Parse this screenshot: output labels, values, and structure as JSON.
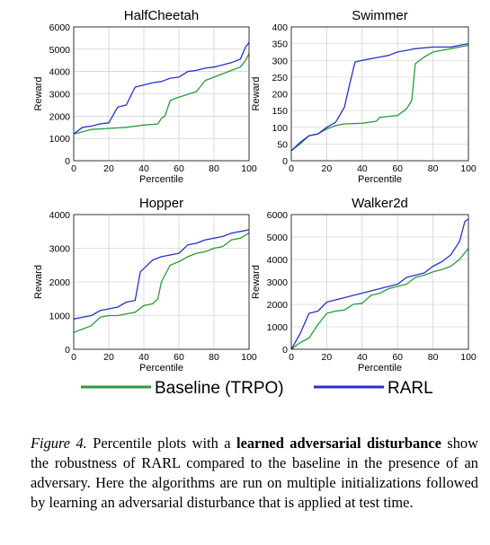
{
  "chart_data": [
    {
      "type": "line",
      "title": "HalfCheetah",
      "xlabel": "Percentile",
      "ylabel": "Reward",
      "xlim": [
        0,
        100
      ],
      "ylim": [
        0,
        6000
      ],
      "xticks": [
        0,
        20,
        40,
        60,
        80,
        100
      ],
      "yticks": [
        0,
        1000,
        2000,
        3000,
        4000,
        5000,
        6000
      ],
      "grid": true,
      "series": [
        {
          "name": "Baseline (TRPO)",
          "color": "#2a9a3a",
          "points": [
            [
              0,
              1200
            ],
            [
              10,
              1400
            ],
            [
              20,
              1450
            ],
            [
              30,
              1500
            ],
            [
              40,
              1600
            ],
            [
              48,
              1650
            ],
            [
              50,
              1900
            ],
            [
              52,
              2000
            ],
            [
              55,
              2700
            ],
            [
              58,
              2800
            ],
            [
              62,
              2900
            ],
            [
              70,
              3100
            ],
            [
              75,
              3600
            ],
            [
              80,
              3750
            ],
            [
              85,
              3900
            ],
            [
              90,
              4050
            ],
            [
              95,
              4200
            ],
            [
              98,
              4500
            ],
            [
              100,
              4800
            ]
          ]
        },
        {
          "name": "RARL",
          "color": "#2633c9",
          "points": [
            [
              0,
              1200
            ],
            [
              5,
              1500
            ],
            [
              10,
              1550
            ],
            [
              15,
              1650
            ],
            [
              20,
              1700
            ],
            [
              25,
              2400
            ],
            [
              30,
              2500
            ],
            [
              35,
              3300
            ],
            [
              40,
              3400
            ],
            [
              45,
              3500
            ],
            [
              50,
              3550
            ],
            [
              55,
              3700
            ],
            [
              60,
              3750
            ],
            [
              65,
              4000
            ],
            [
              70,
              4050
            ],
            [
              75,
              4150
            ],
            [
              80,
              4200
            ],
            [
              85,
              4300
            ],
            [
              90,
              4400
            ],
            [
              95,
              4550
            ],
            [
              98,
              5100
            ],
            [
              100,
              5300
            ]
          ]
        }
      ]
    },
    {
      "type": "line",
      "title": "Swimmer",
      "xlabel": "Percentile",
      "ylabel": "Reward",
      "xlim": [
        0,
        100
      ],
      "ylim": [
        0,
        400
      ],
      "xticks": [
        0,
        20,
        40,
        60,
        80,
        100
      ],
      "yticks": [
        0,
        50,
        100,
        150,
        200,
        250,
        300,
        350,
        400
      ],
      "grid": true,
      "series": [
        {
          "name": "Baseline (TRPO)",
          "color": "#2a9a3a",
          "points": [
            [
              0,
              30
            ],
            [
              5,
              50
            ],
            [
              10,
              75
            ],
            [
              15,
              80
            ],
            [
              20,
              95
            ],
            [
              25,
              105
            ],
            [
              30,
              110
            ],
            [
              40,
              112
            ],
            [
              48,
              118
            ],
            [
              50,
              130
            ],
            [
              60,
              135
            ],
            [
              65,
              155
            ],
            [
              68,
              180
            ],
            [
              70,
              290
            ],
            [
              75,
              310
            ],
            [
              80,
              325
            ],
            [
              85,
              330
            ],
            [
              90,
              335
            ],
            [
              95,
              340
            ],
            [
              100,
              345
            ]
          ]
        },
        {
          "name": "RARL",
          "color": "#2633c9",
          "points": [
            [
              0,
              30
            ],
            [
              5,
              55
            ],
            [
              10,
              75
            ],
            [
              15,
              80
            ],
            [
              20,
              100
            ],
            [
              25,
              115
            ],
            [
              30,
              160
            ],
            [
              33,
              230
            ],
            [
              36,
              295
            ],
            [
              40,
              300
            ],
            [
              45,
              305
            ],
            [
              50,
              310
            ],
            [
              55,
              315
            ],
            [
              60,
              325
            ],
            [
              65,
              330
            ],
            [
              70,
              335
            ],
            [
              80,
              340
            ],
            [
              90,
              340
            ],
            [
              95,
              345
            ],
            [
              100,
              350
            ]
          ]
        }
      ]
    },
    {
      "type": "line",
      "title": "Hopper",
      "xlabel": "Percentile",
      "ylabel": "Reward",
      "xlim": [
        0,
        100
      ],
      "ylim": [
        0,
        4000
      ],
      "xticks": [
        0,
        20,
        40,
        60,
        80,
        100
      ],
      "yticks": [
        0,
        1000,
        2000,
        3000,
        4000
      ],
      "grid": true,
      "series": [
        {
          "name": "Baseline (TRPO)",
          "color": "#2a9a3a",
          "points": [
            [
              0,
              500
            ],
            [
              5,
              600
            ],
            [
              10,
              700
            ],
            [
              15,
              950
            ],
            [
              20,
              1000
            ],
            [
              25,
              1000
            ],
            [
              30,
              1050
            ],
            [
              35,
              1100
            ],
            [
              40,
              1300
            ],
            [
              45,
              1350
            ],
            [
              48,
              1500
            ],
            [
              50,
              2000
            ],
            [
              52,
              2200
            ],
            [
              55,
              2500
            ],
            [
              60,
              2600
            ],
            [
              65,
              2750
            ],
            [
              70,
              2850
            ],
            [
              75,
              2900
            ],
            [
              80,
              3000
            ],
            [
              85,
              3050
            ],
            [
              90,
              3250
            ],
            [
              95,
              3300
            ],
            [
              100,
              3450
            ]
          ]
        },
        {
          "name": "RARL",
          "color": "#2633c9",
          "points": [
            [
              0,
              900
            ],
            [
              5,
              950
            ],
            [
              10,
              1000
            ],
            [
              15,
              1150
            ],
            [
              20,
              1200
            ],
            [
              25,
              1250
            ],
            [
              30,
              1400
            ],
            [
              35,
              1450
            ],
            [
              38,
              2300
            ],
            [
              42,
              2500
            ],
            [
              45,
              2650
            ],
            [
              50,
              2750
            ],
            [
              55,
              2800
            ],
            [
              60,
              2850
            ],
            [
              65,
              3100
            ],
            [
              70,
              3150
            ],
            [
              75,
              3250
            ],
            [
              80,
              3300
            ],
            [
              85,
              3350
            ],
            [
              90,
              3450
            ],
            [
              95,
              3500
            ],
            [
              100,
              3550
            ]
          ]
        }
      ]
    },
    {
      "type": "line",
      "title": "Walker2d",
      "xlabel": "Percentile",
      "ylabel": "Reward",
      "xlim": [
        0,
        100
      ],
      "ylim": [
        0,
        6000
      ],
      "xticks": [
        0,
        20,
        40,
        60,
        80,
        100
      ],
      "yticks": [
        0,
        1000,
        2000,
        3000,
        4000,
        5000,
        6000
      ],
      "grid": true,
      "series": [
        {
          "name": "Baseline (TRPO)",
          "color": "#2a9a3a",
          "points": [
            [
              0,
              0
            ],
            [
              5,
              300
            ],
            [
              10,
              500
            ],
            [
              15,
              1100
            ],
            [
              20,
              1600
            ],
            [
              25,
              1700
            ],
            [
              30,
              1750
            ],
            [
              35,
              2000
            ],
            [
              40,
              2050
            ],
            [
              45,
              2400
            ],
            [
              50,
              2500
            ],
            [
              55,
              2700
            ],
            [
              60,
              2800
            ],
            [
              65,
              2900
            ],
            [
              70,
              3200
            ],
            [
              75,
              3300
            ],
            [
              80,
              3450
            ],
            [
              85,
              3550
            ],
            [
              90,
              3700
            ],
            [
              95,
              4000
            ],
            [
              100,
              4500
            ]
          ]
        },
        {
          "name": "RARL",
          "color": "#2633c9",
          "points": [
            [
              0,
              0
            ],
            [
              5,
              700
            ],
            [
              10,
              1600
            ],
            [
              15,
              1700
            ],
            [
              20,
              2100
            ],
            [
              25,
              2200
            ],
            [
              30,
              2300
            ],
            [
              35,
              2400
            ],
            [
              40,
              2500
            ],
            [
              45,
              2600
            ],
            [
              50,
              2700
            ],
            [
              55,
              2800
            ],
            [
              60,
              2900
            ],
            [
              65,
              3200
            ],
            [
              70,
              3300
            ],
            [
              75,
              3400
            ],
            [
              80,
              3700
            ],
            [
              85,
              3900
            ],
            [
              90,
              4200
            ],
            [
              95,
              4800
            ],
            [
              98,
              5700
            ],
            [
              100,
              5800
            ]
          ]
        }
      ]
    }
  ],
  "legend": {
    "placement": "bottom",
    "entries": [
      {
        "label": "Baseline (TRPO)",
        "color": "#2a9a3a"
      },
      {
        "label": "RARL",
        "color": "#2633c9"
      }
    ]
  },
  "caption": {
    "label": "Figure 4.",
    "text_1": "Percentile plots with a",
    "bold": "learned adversarial disturbance",
    "text_2": "show the robustness of RARL compared to the baseline in the presence of an adversary.  Here the algorithms are run on multiple initializations followed by learning an adversarial disturbance that is applied at test time."
  }
}
